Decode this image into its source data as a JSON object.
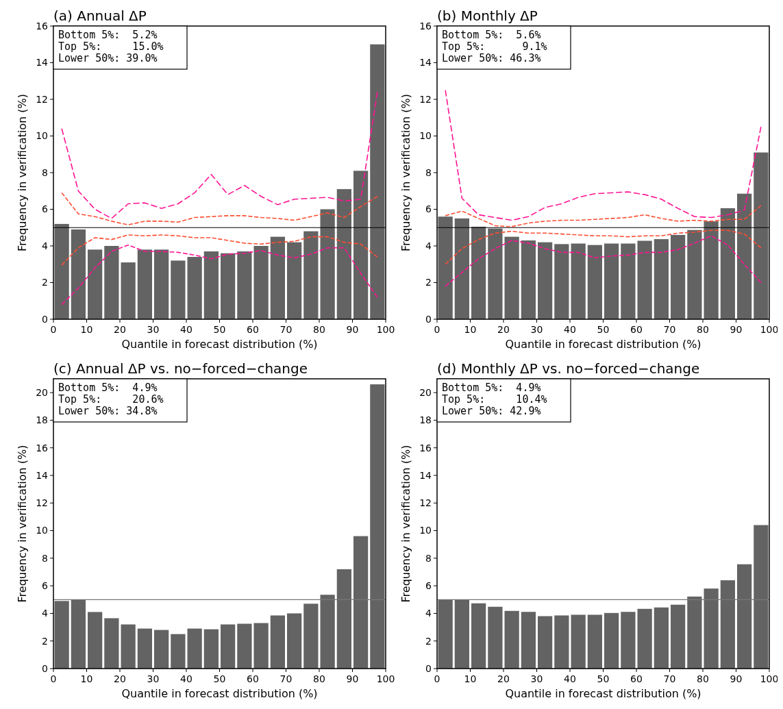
{
  "chart_data": [
    {
      "type": "histogram",
      "title": "(a) Annual ΔP",
      "xlabel": "Quantile in forecast distribution (%)",
      "ylabel": "Frequency in verification (%)",
      "color": "#636363",
      "bins": [
        0,
        5,
        10,
        15,
        20,
        25,
        30,
        35,
        40,
        45,
        50,
        55,
        60,
        65,
        70,
        75,
        80,
        85,
        90,
        95,
        100
      ],
      "values": [
        5.2,
        4.9,
        3.8,
        4.0,
        3.1,
        3.8,
        3.8,
        3.2,
        3.4,
        3.7,
        3.6,
        3.7,
        4.0,
        4.5,
        4.2,
        4.8,
        6.0,
        7.1,
        8.1,
        15.0
      ],
      "series": [
        {
          "type": "line",
          "color": "#ff1493",
          "line_style": "dashed",
          "x": [
            2.5,
            7.5,
            12.5,
            17.5,
            22.5,
            27.5,
            32.5,
            37.5,
            42.5,
            47.5,
            52.5,
            57.5,
            62.5,
            67.5,
            72.5,
            77.5,
            82.5,
            87.5,
            92.5,
            97.5
          ],
          "values": [
            10.4,
            7.0,
            6.0,
            5.5,
            6.3,
            6.35,
            6.05,
            6.3,
            6.9,
            7.9,
            6.8,
            7.3,
            6.7,
            6.25,
            6.55,
            6.6,
            6.65,
            6.45,
            6.55,
            12.4
          ]
        },
        {
          "type": "line",
          "color": "#ff4d33",
          "line_style": "dashed",
          "x": [
            2.5,
            7.5,
            12.5,
            17.5,
            22.5,
            27.5,
            32.5,
            37.5,
            42.5,
            47.5,
            52.5,
            57.5,
            62.5,
            67.5,
            72.5,
            77.5,
            82.5,
            87.5,
            92.5,
            97.5
          ],
          "values": [
            6.9,
            5.75,
            5.6,
            5.35,
            5.15,
            5.35,
            5.35,
            5.3,
            5.55,
            5.6,
            5.65,
            5.65,
            5.55,
            5.5,
            5.4,
            5.6,
            5.8,
            5.55,
            6.15,
            6.7
          ]
        },
        {
          "type": "line",
          "color": "#ff4d33",
          "line_style": "dashed",
          "x": [
            2.5,
            7.5,
            12.5,
            17.5,
            22.5,
            27.5,
            32.5,
            37.5,
            42.5,
            47.5,
            52.5,
            57.5,
            62.5,
            67.5,
            72.5,
            77.5,
            82.5,
            87.5,
            92.5,
            97.5
          ],
          "values": [
            2.95,
            3.9,
            4.45,
            4.35,
            4.6,
            4.55,
            4.6,
            4.55,
            4.45,
            4.45,
            4.3,
            4.15,
            4.1,
            4.2,
            4.25,
            4.5,
            4.5,
            4.2,
            4.1,
            3.4
          ]
        },
        {
          "type": "line",
          "color": "#ff1493",
          "line_style": "dashed",
          "x": [
            2.5,
            7.5,
            12.5,
            17.5,
            22.5,
            27.5,
            32.5,
            37.5,
            42.5,
            47.5,
            52.5,
            57.5,
            62.5,
            67.5,
            72.5,
            77.5,
            82.5,
            87.5,
            92.5,
            97.5
          ],
          "values": [
            0.8,
            1.7,
            2.8,
            3.7,
            4.05,
            3.7,
            3.7,
            3.65,
            3.5,
            3.3,
            3.55,
            3.6,
            3.75,
            3.5,
            3.35,
            3.55,
            3.9,
            3.9,
            2.5,
            1.2
          ]
        }
      ],
      "xlim": [
        0,
        100
      ],
      "xticks": [
        0,
        10,
        20,
        30,
        40,
        50,
        60,
        70,
        80,
        90,
        100
      ],
      "ylim": [
        0,
        16
      ],
      "yticks": [
        0,
        2,
        4,
        6,
        8,
        10,
        12,
        14,
        16
      ],
      "ref_lines": [
        {
          "axis": "y",
          "value": 5,
          "color": "#000000"
        }
      ],
      "annotations": [
        "Bottom 5%:  5.2%",
        "Top 5%:     15.0%",
        "Lower 50%: 39.0%"
      ]
    },
    {
      "type": "histogram",
      "title": "(b) Monthly ΔP",
      "xlabel": "Quantile in forecast distribution (%)",
      "ylabel": "Frequency in verification (%)",
      "color": "#636363",
      "bins": [
        0,
        5,
        10,
        15,
        20,
        25,
        30,
        35,
        40,
        45,
        50,
        55,
        60,
        65,
        70,
        75,
        80,
        85,
        90,
        95,
        100
      ],
      "values": [
        5.6,
        5.5,
        5.05,
        4.95,
        4.5,
        4.3,
        4.2,
        4.1,
        4.13,
        4.05,
        4.13,
        4.13,
        4.28,
        4.37,
        4.6,
        4.87,
        5.34,
        6.06,
        6.85,
        9.1
      ],
      "series": [
        {
          "type": "line",
          "color": "#ff1493",
          "line_style": "dashed",
          "x": [
            2.5,
            7.5,
            12.5,
            17.5,
            22.5,
            27.5,
            32.5,
            37.5,
            42.5,
            47.5,
            52.5,
            57.5,
            62.5,
            67.5,
            72.5,
            77.5,
            82.5,
            87.5,
            92.5,
            97.5
          ],
          "values": [
            12.5,
            6.6,
            5.7,
            5.55,
            5.4,
            5.6,
            6.1,
            6.3,
            6.65,
            6.85,
            6.9,
            6.95,
            6.8,
            6.55,
            6.05,
            5.6,
            5.55,
            5.7,
            5.95,
            10.5
          ]
        },
        {
          "type": "line",
          "color": "#ff4d33",
          "line_style": "dashed",
          "x": [
            2.5,
            7.5,
            12.5,
            17.5,
            22.5,
            27.5,
            32.5,
            37.5,
            42.5,
            47.5,
            52.5,
            57.5,
            62.5,
            67.5,
            72.5,
            77.5,
            82.5,
            87.5,
            92.5,
            97.5
          ],
          "values": [
            5.65,
            5.9,
            5.5,
            5.1,
            5.05,
            5.25,
            5.35,
            5.4,
            5.4,
            5.45,
            5.5,
            5.55,
            5.7,
            5.5,
            5.35,
            5.4,
            5.35,
            5.45,
            5.45,
            6.2
          ]
        },
        {
          "type": "line",
          "color": "#ff4d33",
          "line_style": "dashed",
          "x": [
            2.5,
            7.5,
            12.5,
            17.5,
            22.5,
            27.5,
            32.5,
            37.5,
            42.5,
            47.5,
            52.5,
            57.5,
            62.5,
            67.5,
            72.5,
            77.5,
            82.5,
            87.5,
            92.5,
            97.5
          ],
          "values": [
            3.0,
            3.85,
            4.35,
            4.7,
            4.8,
            4.7,
            4.7,
            4.65,
            4.6,
            4.55,
            4.55,
            4.5,
            4.55,
            4.55,
            4.7,
            4.75,
            4.85,
            4.85,
            4.65,
            3.9
          ]
        },
        {
          "type": "line",
          "color": "#ff1493",
          "line_style": "dashed",
          "x": [
            2.5,
            7.5,
            12.5,
            17.5,
            22.5,
            27.5,
            32.5,
            37.5,
            42.5,
            47.5,
            52.5,
            57.5,
            62.5,
            67.5,
            72.5,
            77.5,
            82.5,
            87.5,
            92.5,
            97.5
          ],
          "values": [
            1.8,
            2.55,
            3.3,
            3.85,
            4.3,
            4.15,
            3.85,
            3.65,
            3.65,
            3.35,
            3.45,
            3.5,
            3.65,
            3.65,
            3.8,
            4.15,
            4.55,
            4.05,
            3.0,
            2.0
          ]
        }
      ],
      "xlim": [
        0,
        100
      ],
      "xticks": [
        0,
        10,
        20,
        30,
        40,
        50,
        60,
        70,
        80,
        90,
        100
      ],
      "ylim": [
        0,
        16
      ],
      "yticks": [
        0,
        2,
        4,
        6,
        8,
        10,
        12,
        14,
        16
      ],
      "ref_lines": [
        {
          "axis": "y",
          "value": 5,
          "color": "#000000"
        }
      ],
      "annotations": [
        "Bottom 5%:  5.6%",
        "Top 5%:      9.1%",
        "Lower 50%: 46.3%"
      ]
    },
    {
      "type": "histogram",
      "title": "(c) Annual ΔP vs. no−forced−change",
      "xlabel": "Quantile in forecast distribution (%)",
      "ylabel": "Frequency in verification (%)",
      "color": "#636363",
      "bins": [
        0,
        5,
        10,
        15,
        20,
        25,
        30,
        35,
        40,
        45,
        50,
        55,
        60,
        65,
        70,
        75,
        80,
        85,
        90,
        95,
        100
      ],
      "values": [
        4.9,
        5.0,
        4.1,
        3.65,
        3.2,
        2.9,
        2.8,
        2.5,
        2.9,
        2.85,
        3.2,
        3.25,
        3.3,
        3.85,
        4.0,
        4.7,
        5.35,
        7.2,
        9.6,
        20.6
      ],
      "xlim": [
        0,
        100
      ],
      "xticks": [
        0,
        10,
        20,
        30,
        40,
        50,
        60,
        70,
        80,
        90,
        100
      ],
      "ylim": [
        0,
        21
      ],
      "yticks": [
        0,
        2,
        4,
        6,
        8,
        10,
        12,
        14,
        16,
        18,
        20
      ],
      "ref_lines": [
        {
          "axis": "y",
          "value": 5,
          "color": "#777777"
        }
      ],
      "annotations": [
        "Bottom 5%:  4.9%",
        "Top 5%:     20.6%",
        "Lower 50%: 34.8%"
      ]
    },
    {
      "type": "histogram",
      "title": "(d) Monthly ΔP vs. no−forced−change",
      "xlabel": "Quantile in forecast distribution (%)",
      "ylabel": "Frequency in verification (%)",
      "color": "#636363",
      "bins": [
        0,
        5,
        10,
        15,
        20,
        25,
        30,
        35,
        40,
        45,
        50,
        55,
        60,
        65,
        70,
        75,
        80,
        85,
        90,
        95,
        100
      ],
      "values": [
        5.0,
        5.0,
        4.73,
        4.48,
        4.18,
        4.11,
        3.8,
        3.85,
        3.9,
        3.9,
        4.03,
        4.11,
        4.33,
        4.43,
        4.63,
        5.22,
        5.8,
        6.4,
        7.56,
        10.4
      ],
      "xlim": [
        0,
        100
      ],
      "xticks": [
        0,
        10,
        20,
        30,
        40,
        50,
        60,
        70,
        80,
        90,
        100
      ],
      "ylim": [
        0,
        21
      ],
      "yticks": [
        0,
        2,
        4,
        6,
        8,
        10,
        12,
        14,
        16,
        18,
        20
      ],
      "ref_lines": [
        {
          "axis": "y",
          "value": 5,
          "color": "#777777"
        }
      ],
      "annotations": [
        "Bottom 5%:  4.9%",
        "Top 5%:     10.4%",
        "Lower 50%: 42.9%"
      ]
    }
  ]
}
